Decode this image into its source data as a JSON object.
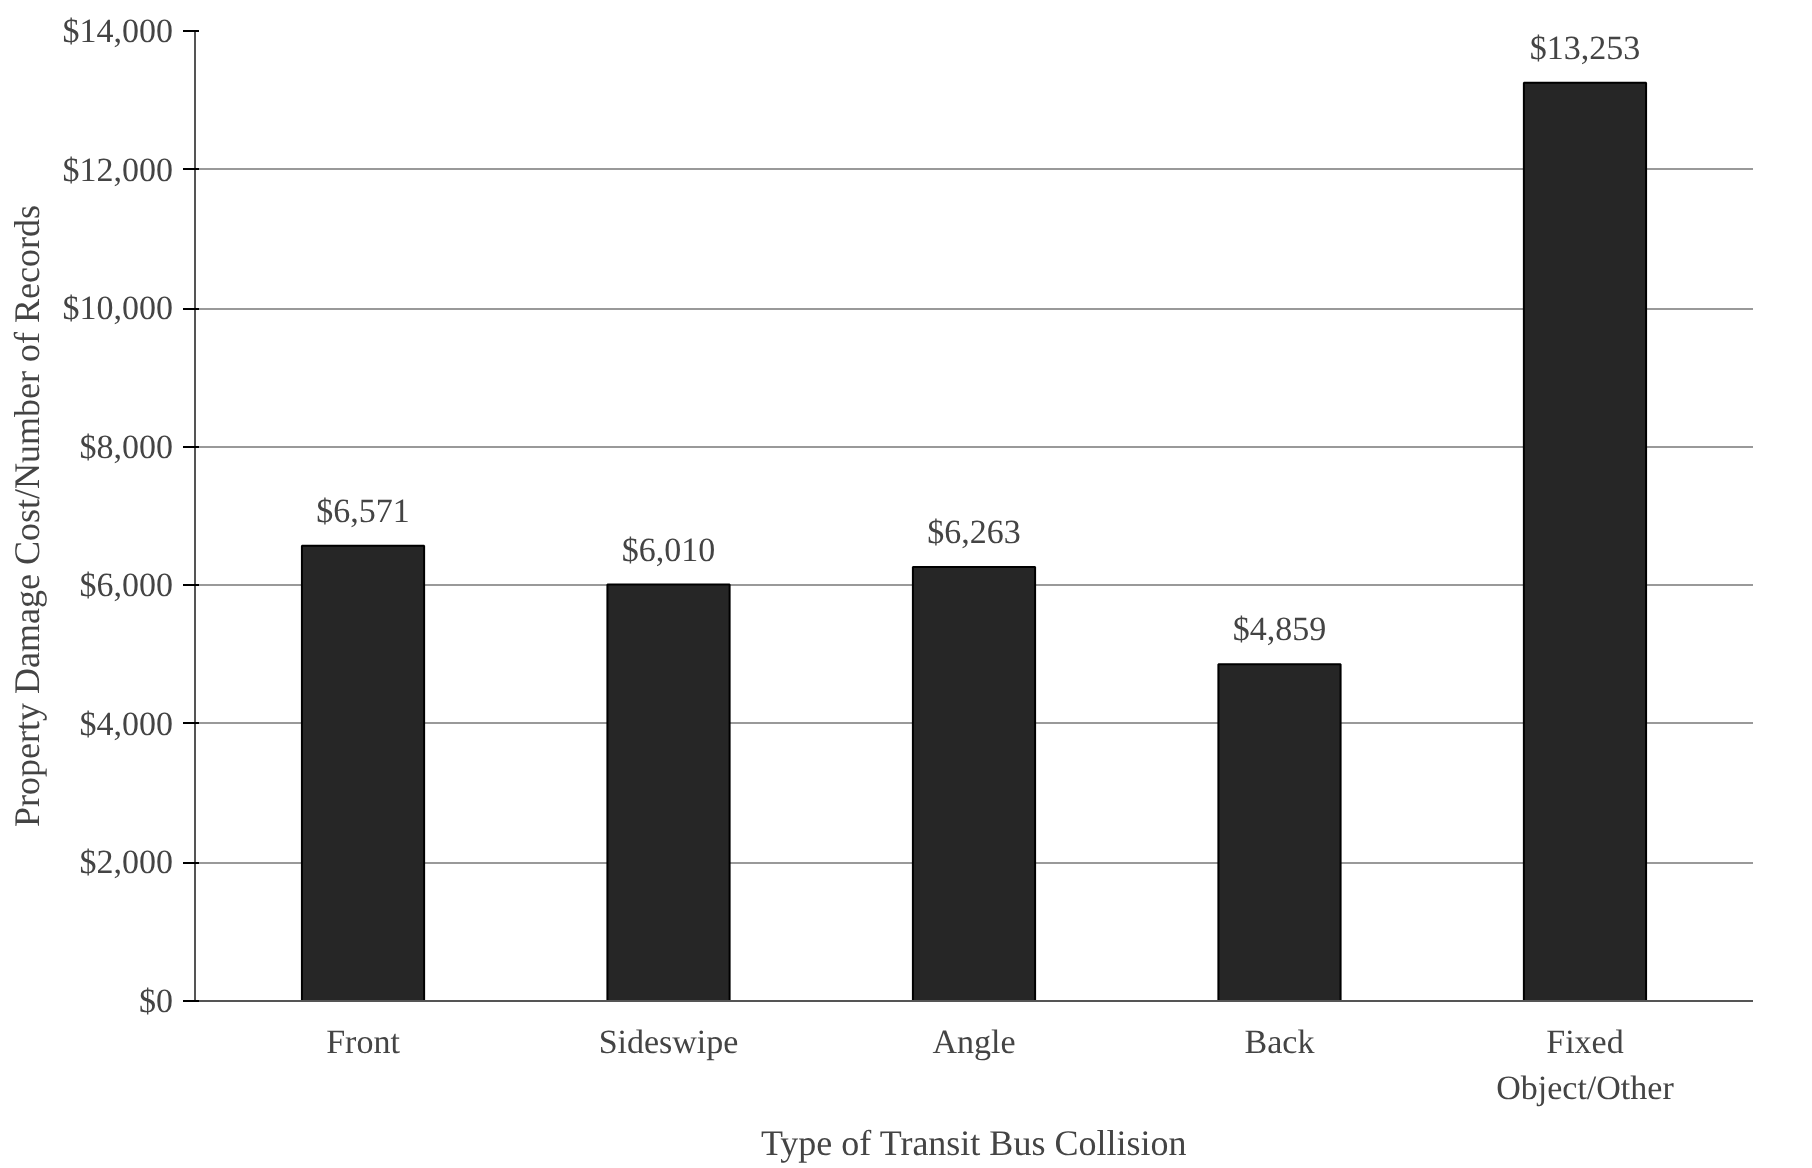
{
  "chart_data": {
    "type": "bar",
    "xlabel": "Type of Transit Bus Collision",
    "ylabel": "Property Damage Cost/Number of Records",
    "categories": [
      "Front",
      "Sideswipe",
      "Angle",
      "Back",
      "Fixed Object/Other"
    ],
    "values": [
      6571,
      6010,
      6263,
      4859,
      13253
    ],
    "value_labels": [
      "$6,571",
      "$6,010",
      "$6,263",
      "$4,859",
      "$13,253"
    ],
    "color": "#262626",
    "ylim": [
      0,
      14000
    ],
    "yticks": [
      {
        "value": 0,
        "label": "$0"
      },
      {
        "value": 2000,
        "label": "$2,000"
      },
      {
        "value": 4000,
        "label": "$4,000"
      },
      {
        "value": 6000,
        "label": "$6,000"
      },
      {
        "value": 8000,
        "label": "$8,000"
      },
      {
        "value": 10000,
        "label": "$10,000"
      },
      {
        "value": 12000,
        "label": "$12,000"
      },
      {
        "value": 14000,
        "label": "$14,000"
      }
    ],
    "grid": "y"
  }
}
